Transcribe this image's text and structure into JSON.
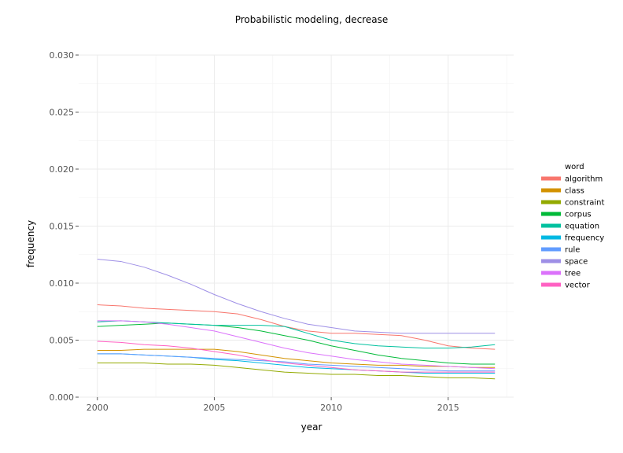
{
  "chart_data": {
    "type": "line",
    "title": "Probabilistic modeling, decrease",
    "xlabel": "year",
    "ylabel": "frequency",
    "xlim": [
      1999.2,
      2017.8
    ],
    "ylim": [
      0,
      0.03
    ],
    "x_ticks": [
      2000,
      2005,
      2010,
      2015
    ],
    "x_tick_labels": [
      "2000",
      "2005",
      "2010",
      "2015"
    ],
    "y_ticks": [
      0,
      0.005,
      0.01,
      0.015,
      0.02,
      0.025,
      0.03
    ],
    "y_tick_labels": [
      "0.000",
      "0.005",
      "0.010",
      "0.015",
      "0.020",
      "0.025",
      "0.030"
    ],
    "grid": true,
    "legend_title": "word",
    "legend_position": "right",
    "x": [
      2000,
      2001,
      2002,
      2003,
      2004,
      2005,
      2006,
      2007,
      2008,
      2009,
      2010,
      2011,
      2012,
      2013,
      2014,
      2015,
      2016,
      2017
    ],
    "series": [
      {
        "name": "algorithm",
        "color": "#f8766d",
        "values": [
          0.0081,
          0.008,
          0.0078,
          0.0077,
          0.0076,
          0.0075,
          0.0073,
          0.0068,
          0.0062,
          0.0058,
          0.0056,
          0.0056,
          0.0055,
          0.0054,
          0.005,
          0.0045,
          0.0043,
          0.0042
        ]
      },
      {
        "name": "class",
        "color": "#d39200",
        "values": [
          0.0041,
          0.0041,
          0.0042,
          0.0042,
          0.0042,
          0.0042,
          0.004,
          0.0037,
          0.0034,
          0.0032,
          0.003,
          0.0029,
          0.0028,
          0.0028,
          0.0027,
          0.0027,
          0.0026,
          0.0026
        ]
      },
      {
        "name": "constraint",
        "color": "#93aa00",
        "values": [
          0.003,
          0.003,
          0.003,
          0.0029,
          0.0029,
          0.0028,
          0.0026,
          0.0024,
          0.0022,
          0.0021,
          0.002,
          0.002,
          0.0019,
          0.0019,
          0.0018,
          0.0017,
          0.0017,
          0.0016
        ]
      },
      {
        "name": "corpus",
        "color": "#00ba38",
        "values": [
          0.0062,
          0.0063,
          0.0064,
          0.0065,
          0.0064,
          0.0063,
          0.0061,
          0.0058,
          0.0054,
          0.005,
          0.0045,
          0.0041,
          0.0037,
          0.0034,
          0.0032,
          0.003,
          0.0029,
          0.0029
        ]
      },
      {
        "name": "equation",
        "color": "#00c19f",
        "values": [
          0.0066,
          0.0067,
          0.0066,
          0.0065,
          0.0064,
          0.0063,
          0.0063,
          0.0063,
          0.0062,
          0.0056,
          0.005,
          0.0047,
          0.0045,
          0.0044,
          0.0043,
          0.0043,
          0.0044,
          0.0046
        ]
      },
      {
        "name": "frequency",
        "color": "#00b9e3",
        "values": [
          0.0038,
          0.0038,
          0.0037,
          0.0036,
          0.0035,
          0.0033,
          0.0032,
          0.003,
          0.0028,
          0.0026,
          0.0025,
          0.0024,
          0.0023,
          0.0022,
          0.0021,
          0.0021,
          0.0021,
          0.0021
        ]
      },
      {
        "name": "rule",
        "color": "#619cff",
        "values": [
          0.0038,
          0.0038,
          0.0037,
          0.0036,
          0.0035,
          0.0034,
          0.0033,
          0.0032,
          0.0031,
          0.0029,
          0.0028,
          0.0027,
          0.0026,
          0.0025,
          0.0024,
          0.0023,
          0.0023,
          0.0023
        ]
      },
      {
        "name": "space",
        "color": "#9e8fe6",
        "values": [
          0.0121,
          0.0119,
          0.0114,
          0.0107,
          0.0099,
          0.009,
          0.0082,
          0.0075,
          0.0069,
          0.0064,
          0.0061,
          0.0058,
          0.0057,
          0.0056,
          0.0056,
          0.0056,
          0.0056,
          0.0056
        ]
      },
      {
        "name": "tree",
        "color": "#db72fb",
        "values": [
          0.0067,
          0.0067,
          0.0066,
          0.0064,
          0.0061,
          0.0058,
          0.0053,
          0.0048,
          0.0043,
          0.0039,
          0.0036,
          0.0033,
          0.0031,
          0.0029,
          0.0028,
          0.0027,
          0.0026,
          0.0025
        ]
      },
      {
        "name": "vector",
        "color": "#ff61c3",
        "values": [
          0.0049,
          0.0048,
          0.0046,
          0.0045,
          0.0043,
          0.004,
          0.0037,
          0.0033,
          0.003,
          0.0028,
          0.0026,
          0.0024,
          0.0023,
          0.0022,
          0.0022,
          0.0022,
          0.0022,
          0.0022
        ]
      }
    ]
  }
}
